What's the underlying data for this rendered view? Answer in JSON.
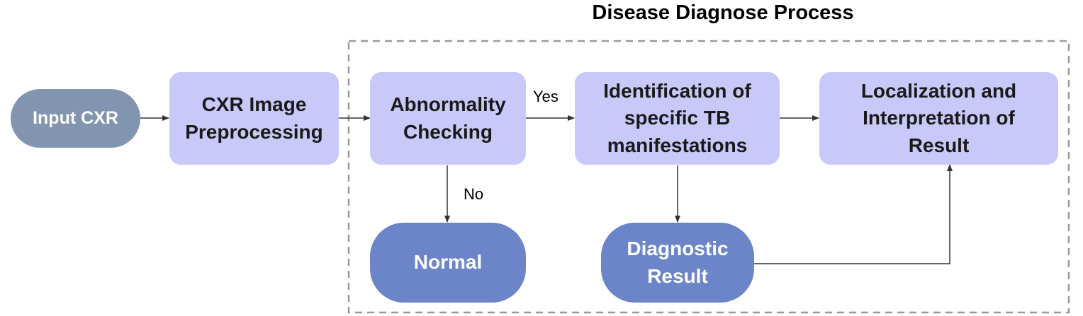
{
  "title": "Disease Diagnose Process",
  "nodes": {
    "input": "Input CXR",
    "preprocess": "CXR Image\nPreprocessing",
    "abnormality": "Abnormality\nChecking",
    "identification": "Identification of\nspecific TB\nmanifestations",
    "localization": "Localization and\nInterpretation of\nResult",
    "normal": "Normal",
    "diagnostic": "Diagnostic\nResult"
  },
  "edge_labels": {
    "yes": "Yes",
    "no": "No"
  },
  "colors": {
    "process_fill": "#c9c9f9",
    "input_fill": "#8295b0",
    "terminal_fill": "#6b85c8",
    "arrow": "#333333",
    "group_border": "#999999"
  }
}
